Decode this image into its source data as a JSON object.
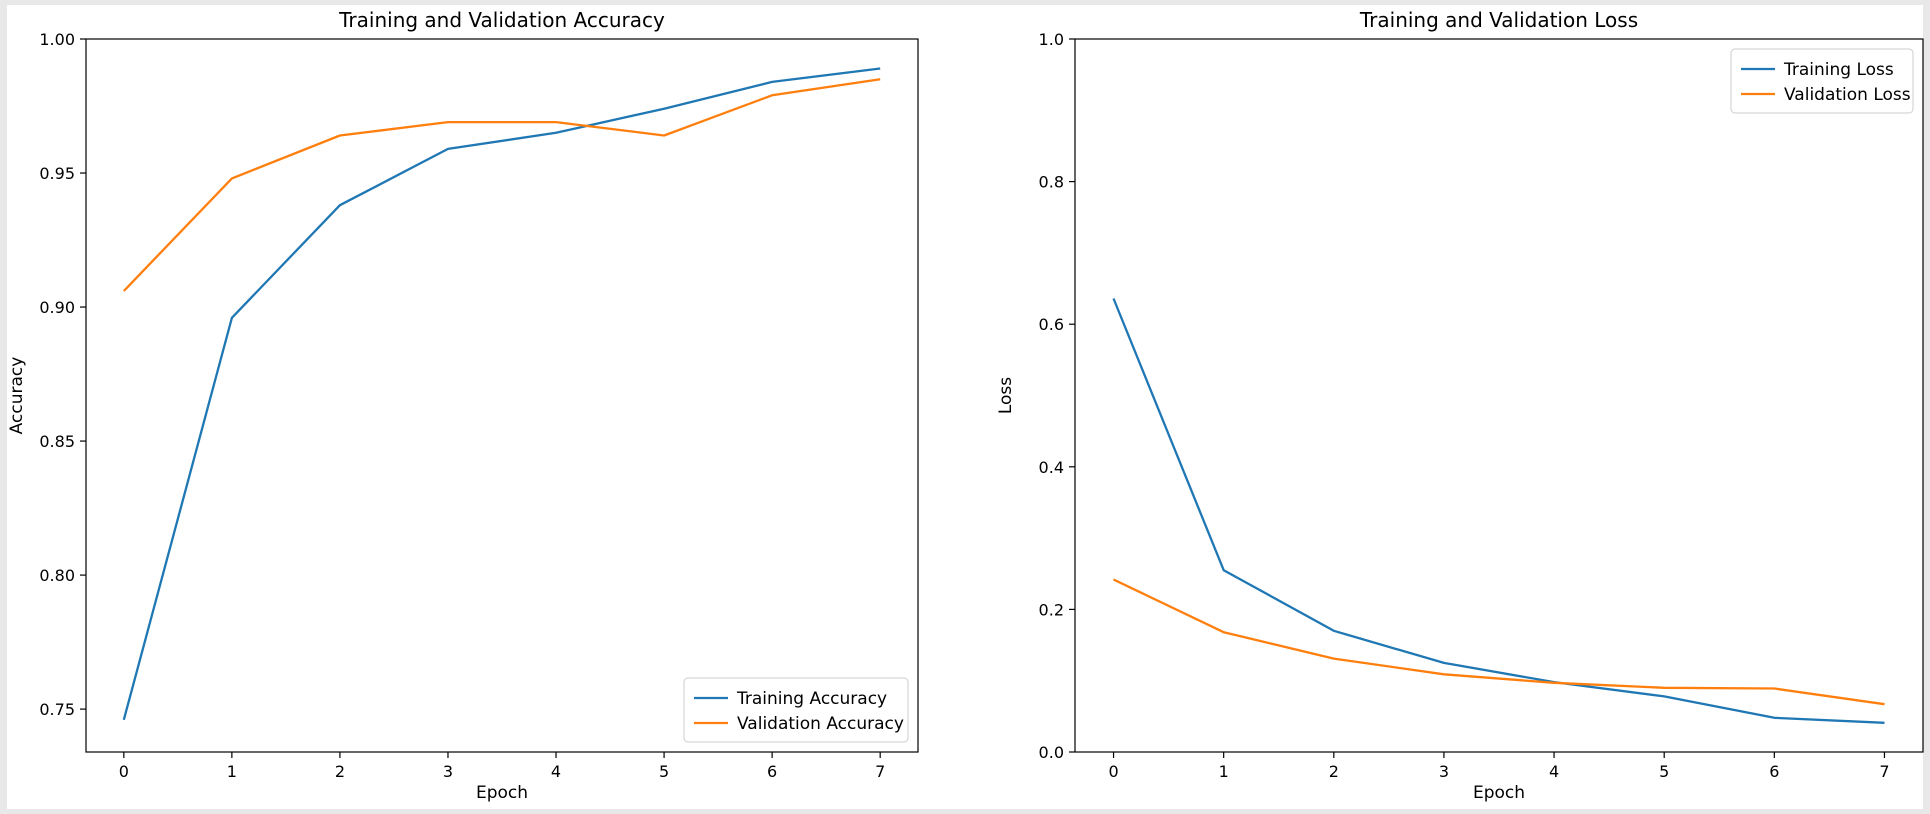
{
  "chart_data": [
    {
      "type": "line",
      "title": "Training and Validation Accuracy",
      "xlabel": "Epoch",
      "ylabel": "Accuracy",
      "xlim": [
        -0.35,
        7.35
      ],
      "ylim": [
        0.734,
        1.0
      ],
      "xticks": [
        0,
        1,
        2,
        3,
        4,
        5,
        6,
        7
      ],
      "yticks": [
        0.75,
        0.8,
        0.85,
        0.9,
        0.95,
        1.0
      ],
      "ytick_labels": [
        "0.75",
        "0.80",
        "0.85",
        "0.90",
        "0.95",
        "1.00"
      ],
      "legend_position": "lower right",
      "grid": false,
      "x": [
        0,
        1,
        2,
        3,
        4,
        5,
        6,
        7
      ],
      "series": [
        {
          "name": "Training Accuracy",
          "color": "#1f77b4",
          "values": [
            0.746,
            0.896,
            0.938,
            0.959,
            0.965,
            0.974,
            0.984,
            0.989
          ]
        },
        {
          "name": "Validation Accuracy",
          "color": "#ff7f0e",
          "values": [
            0.906,
            0.948,
            0.964,
            0.969,
            0.969,
            0.964,
            0.979,
            0.985
          ]
        }
      ]
    },
    {
      "type": "line",
      "title": "Training and Validation Loss",
      "xlabel": "Epoch",
      "ylabel": "Loss",
      "xlim": [
        -0.35,
        7.35
      ],
      "ylim": [
        0.0,
        1.0
      ],
      "xticks": [
        0,
        1,
        2,
        3,
        4,
        5,
        6,
        7
      ],
      "yticks": [
        0.0,
        0.2,
        0.4,
        0.6,
        0.8,
        1.0
      ],
      "ytick_labels": [
        "0.0",
        "0.2",
        "0.4",
        "0.6",
        "0.8",
        "1.0"
      ],
      "legend_position": "upper right",
      "grid": false,
      "x": [
        0,
        1,
        2,
        3,
        4,
        5,
        6,
        7
      ],
      "series": [
        {
          "name": "Training Loss",
          "color": "#1f77b4",
          "values": [
            0.636,
            0.255,
            0.17,
            0.125,
            0.098,
            0.078,
            0.048,
            0.041
          ]
        },
        {
          "name": "Validation Loss",
          "color": "#ff7f0e",
          "values": [
            0.242,
            0.168,
            0.131,
            0.109,
            0.097,
            0.09,
            0.089,
            0.067
          ]
        }
      ]
    }
  ]
}
